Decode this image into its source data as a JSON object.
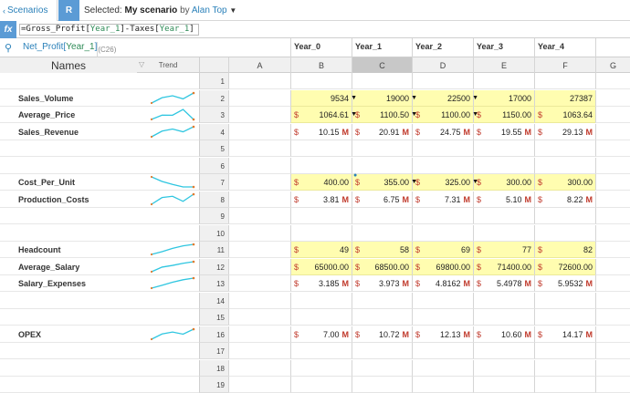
{
  "toolbar": {
    "scenarios_label": "Scenarios",
    "r_label": "R",
    "selected_prefix": "Selected:",
    "scenario_name": "My scenario",
    "by_label": "by",
    "user_name": "Alan Top"
  },
  "formula": {
    "fx_label": "fx",
    "parts": [
      {
        "text": "=Gross_Profit[",
        "green": false
      },
      {
        "text": "Year_1",
        "green": true
      },
      {
        "text": "]-Taxes[",
        "green": false
      },
      {
        "text": "Year_1",
        "green": true
      },
      {
        "text": "]",
        "green": false
      }
    ]
  },
  "namebox": {
    "name": "Net_Profit[",
    "dim": "Year_1",
    "close": "]",
    "cell_ref": "(C26)"
  },
  "headers": {
    "names": "Names",
    "trend": "Trend",
    "columns": [
      "A",
      "B",
      "C",
      "D",
      "E",
      "F",
      "G"
    ],
    "years": [
      "Year_0",
      "Year_1",
      "Year_2",
      "Year_3",
      "Year_4"
    ]
  },
  "colors": {
    "input_bg": "#fffdb0",
    "accent": "#2a80b9",
    "spark_line": "#2fc6e0",
    "spark_end": "#e07b2f",
    "currency": "#c0392b"
  },
  "rows": [
    {
      "num": "1",
      "name": "",
      "cells": []
    },
    {
      "num": "2",
      "name": "Sales_Volume",
      "trend": [
        9534,
        19000,
        22500,
        17000,
        27387
      ],
      "input": true,
      "cells": [
        {
          "cur": "",
          "val": "9534",
          "unit": "",
          "dd": true
        },
        {
          "cur": "",
          "val": "19000",
          "unit": "",
          "dd": true
        },
        {
          "cur": "",
          "val": "22500",
          "unit": "",
          "dd": true
        },
        {
          "cur": "",
          "val": "17000",
          "unit": "",
          "dd": false
        },
        {
          "cur": "",
          "val": "27387",
          "unit": "",
          "dd": false
        }
      ]
    },
    {
      "num": "3",
      "name": "Average_Price",
      "trend": [
        1064.61,
        1100.5,
        1100,
        1150,
        1063.64
      ],
      "input": true,
      "cells": [
        {
          "cur": "$",
          "val": "1064.61",
          "unit": "",
          "dd": true
        },
        {
          "cur": "$",
          "val": "1100.50",
          "unit": "",
          "dd": true
        },
        {
          "cur": "$",
          "val": "1100.00",
          "unit": "",
          "dd": true
        },
        {
          "cur": "$",
          "val": "1150.00",
          "unit": "",
          "dd": false
        },
        {
          "cur": "$",
          "val": "1063.64",
          "unit": "",
          "dd": false
        }
      ]
    },
    {
      "num": "4",
      "name": "Sales_Revenue",
      "trend": [
        10.15,
        20.91,
        24.75,
        19.55,
        29.13
      ],
      "input": false,
      "cells": [
        {
          "cur": "$",
          "val": "10.15",
          "unit": "M"
        },
        {
          "cur": "$",
          "val": "20.91",
          "unit": "M"
        },
        {
          "cur": "$",
          "val": "24.75",
          "unit": "M"
        },
        {
          "cur": "$",
          "val": "19.55",
          "unit": "M"
        },
        {
          "cur": "$",
          "val": "29.13",
          "unit": "M"
        }
      ]
    },
    {
      "num": "5",
      "name": "",
      "cells": []
    },
    {
      "num": "6",
      "name": "",
      "cells": []
    },
    {
      "num": "7",
      "name": "Cost_Per_Unit",
      "trend": [
        400,
        355,
        325,
        300,
        300
      ],
      "input": true,
      "cells": [
        {
          "cur": "$",
          "val": "400.00",
          "unit": "",
          "dd": false
        },
        {
          "cur": "$",
          "val": "355.00",
          "unit": "",
          "dd": true,
          "info": true
        },
        {
          "cur": "$",
          "val": "325.00",
          "unit": "",
          "dd": true
        },
        {
          "cur": "$",
          "val": "300.00",
          "unit": "",
          "dd": false
        },
        {
          "cur": "$",
          "val": "300.00",
          "unit": "",
          "dd": false
        }
      ]
    },
    {
      "num": "8",
      "name": "Production_Costs",
      "trend": [
        3.81,
        6.75,
        7.31,
        5.1,
        8.22
      ],
      "input": false,
      "cells": [
        {
          "cur": "$",
          "val": "3.81",
          "unit": "M"
        },
        {
          "cur": "$",
          "val": "6.75",
          "unit": "M"
        },
        {
          "cur": "$",
          "val": "7.31",
          "unit": "M"
        },
        {
          "cur": "$",
          "val": "5.10",
          "unit": "M"
        },
        {
          "cur": "$",
          "val": "8.22",
          "unit": "M"
        }
      ]
    },
    {
      "num": "9",
      "name": "",
      "cells": []
    },
    {
      "num": "10",
      "name": "",
      "cells": []
    },
    {
      "num": "11",
      "name": "Headcount",
      "trend": [
        49,
        58,
        69,
        77,
        82
      ],
      "input": true,
      "cells": [
        {
          "cur": "$",
          "val": "49",
          "unit": ""
        },
        {
          "cur": "$",
          "val": "58",
          "unit": ""
        },
        {
          "cur": "$",
          "val": "69",
          "unit": ""
        },
        {
          "cur": "$",
          "val": "77",
          "unit": ""
        },
        {
          "cur": "$",
          "val": "82",
          "unit": ""
        }
      ]
    },
    {
      "num": "12",
      "name": "Average_Salary",
      "trend": [
        65000,
        68500,
        69800,
        71400,
        72600
      ],
      "input": true,
      "cells": [
        {
          "cur": "$",
          "val": "65000.00",
          "unit": ""
        },
        {
          "cur": "$",
          "val": "68500.00",
          "unit": ""
        },
        {
          "cur": "$",
          "val": "69800.00",
          "unit": ""
        },
        {
          "cur": "$",
          "val": "71400.00",
          "unit": ""
        },
        {
          "cur": "$",
          "val": "72600.00",
          "unit": ""
        }
      ]
    },
    {
      "num": "13",
      "name": "Salary_Expenses",
      "trend": [
        3.185,
        3.973,
        4.8162,
        5.4978,
        5.9532
      ],
      "input": false,
      "cells": [
        {
          "cur": "$",
          "val": "3.185",
          "unit": "M"
        },
        {
          "cur": "$",
          "val": "3.973",
          "unit": "M"
        },
        {
          "cur": "$",
          "val": "4.8162",
          "unit": "M"
        },
        {
          "cur": "$",
          "val": "5.4978",
          "unit": "M"
        },
        {
          "cur": "$",
          "val": "5.9532",
          "unit": "M"
        }
      ]
    },
    {
      "num": "14",
      "name": "",
      "cells": []
    },
    {
      "num": "15",
      "name": "",
      "cells": []
    },
    {
      "num": "16",
      "name": "OPEX",
      "trend": [
        7.0,
        10.72,
        12.13,
        10.6,
        14.17
      ],
      "input": false,
      "cells": [
        {
          "cur": "$",
          "val": "7.00",
          "unit": "M"
        },
        {
          "cur": "$",
          "val": "10.72",
          "unit": "M"
        },
        {
          "cur": "$",
          "val": "12.13",
          "unit": "M"
        },
        {
          "cur": "$",
          "val": "10.60",
          "unit": "M"
        },
        {
          "cur": "$",
          "val": "14.17",
          "unit": "M"
        }
      ]
    },
    {
      "num": "17",
      "name": "",
      "cells": []
    },
    {
      "num": "18",
      "name": "",
      "cells": []
    },
    {
      "num": "19",
      "name": "",
      "cells": []
    }
  ]
}
